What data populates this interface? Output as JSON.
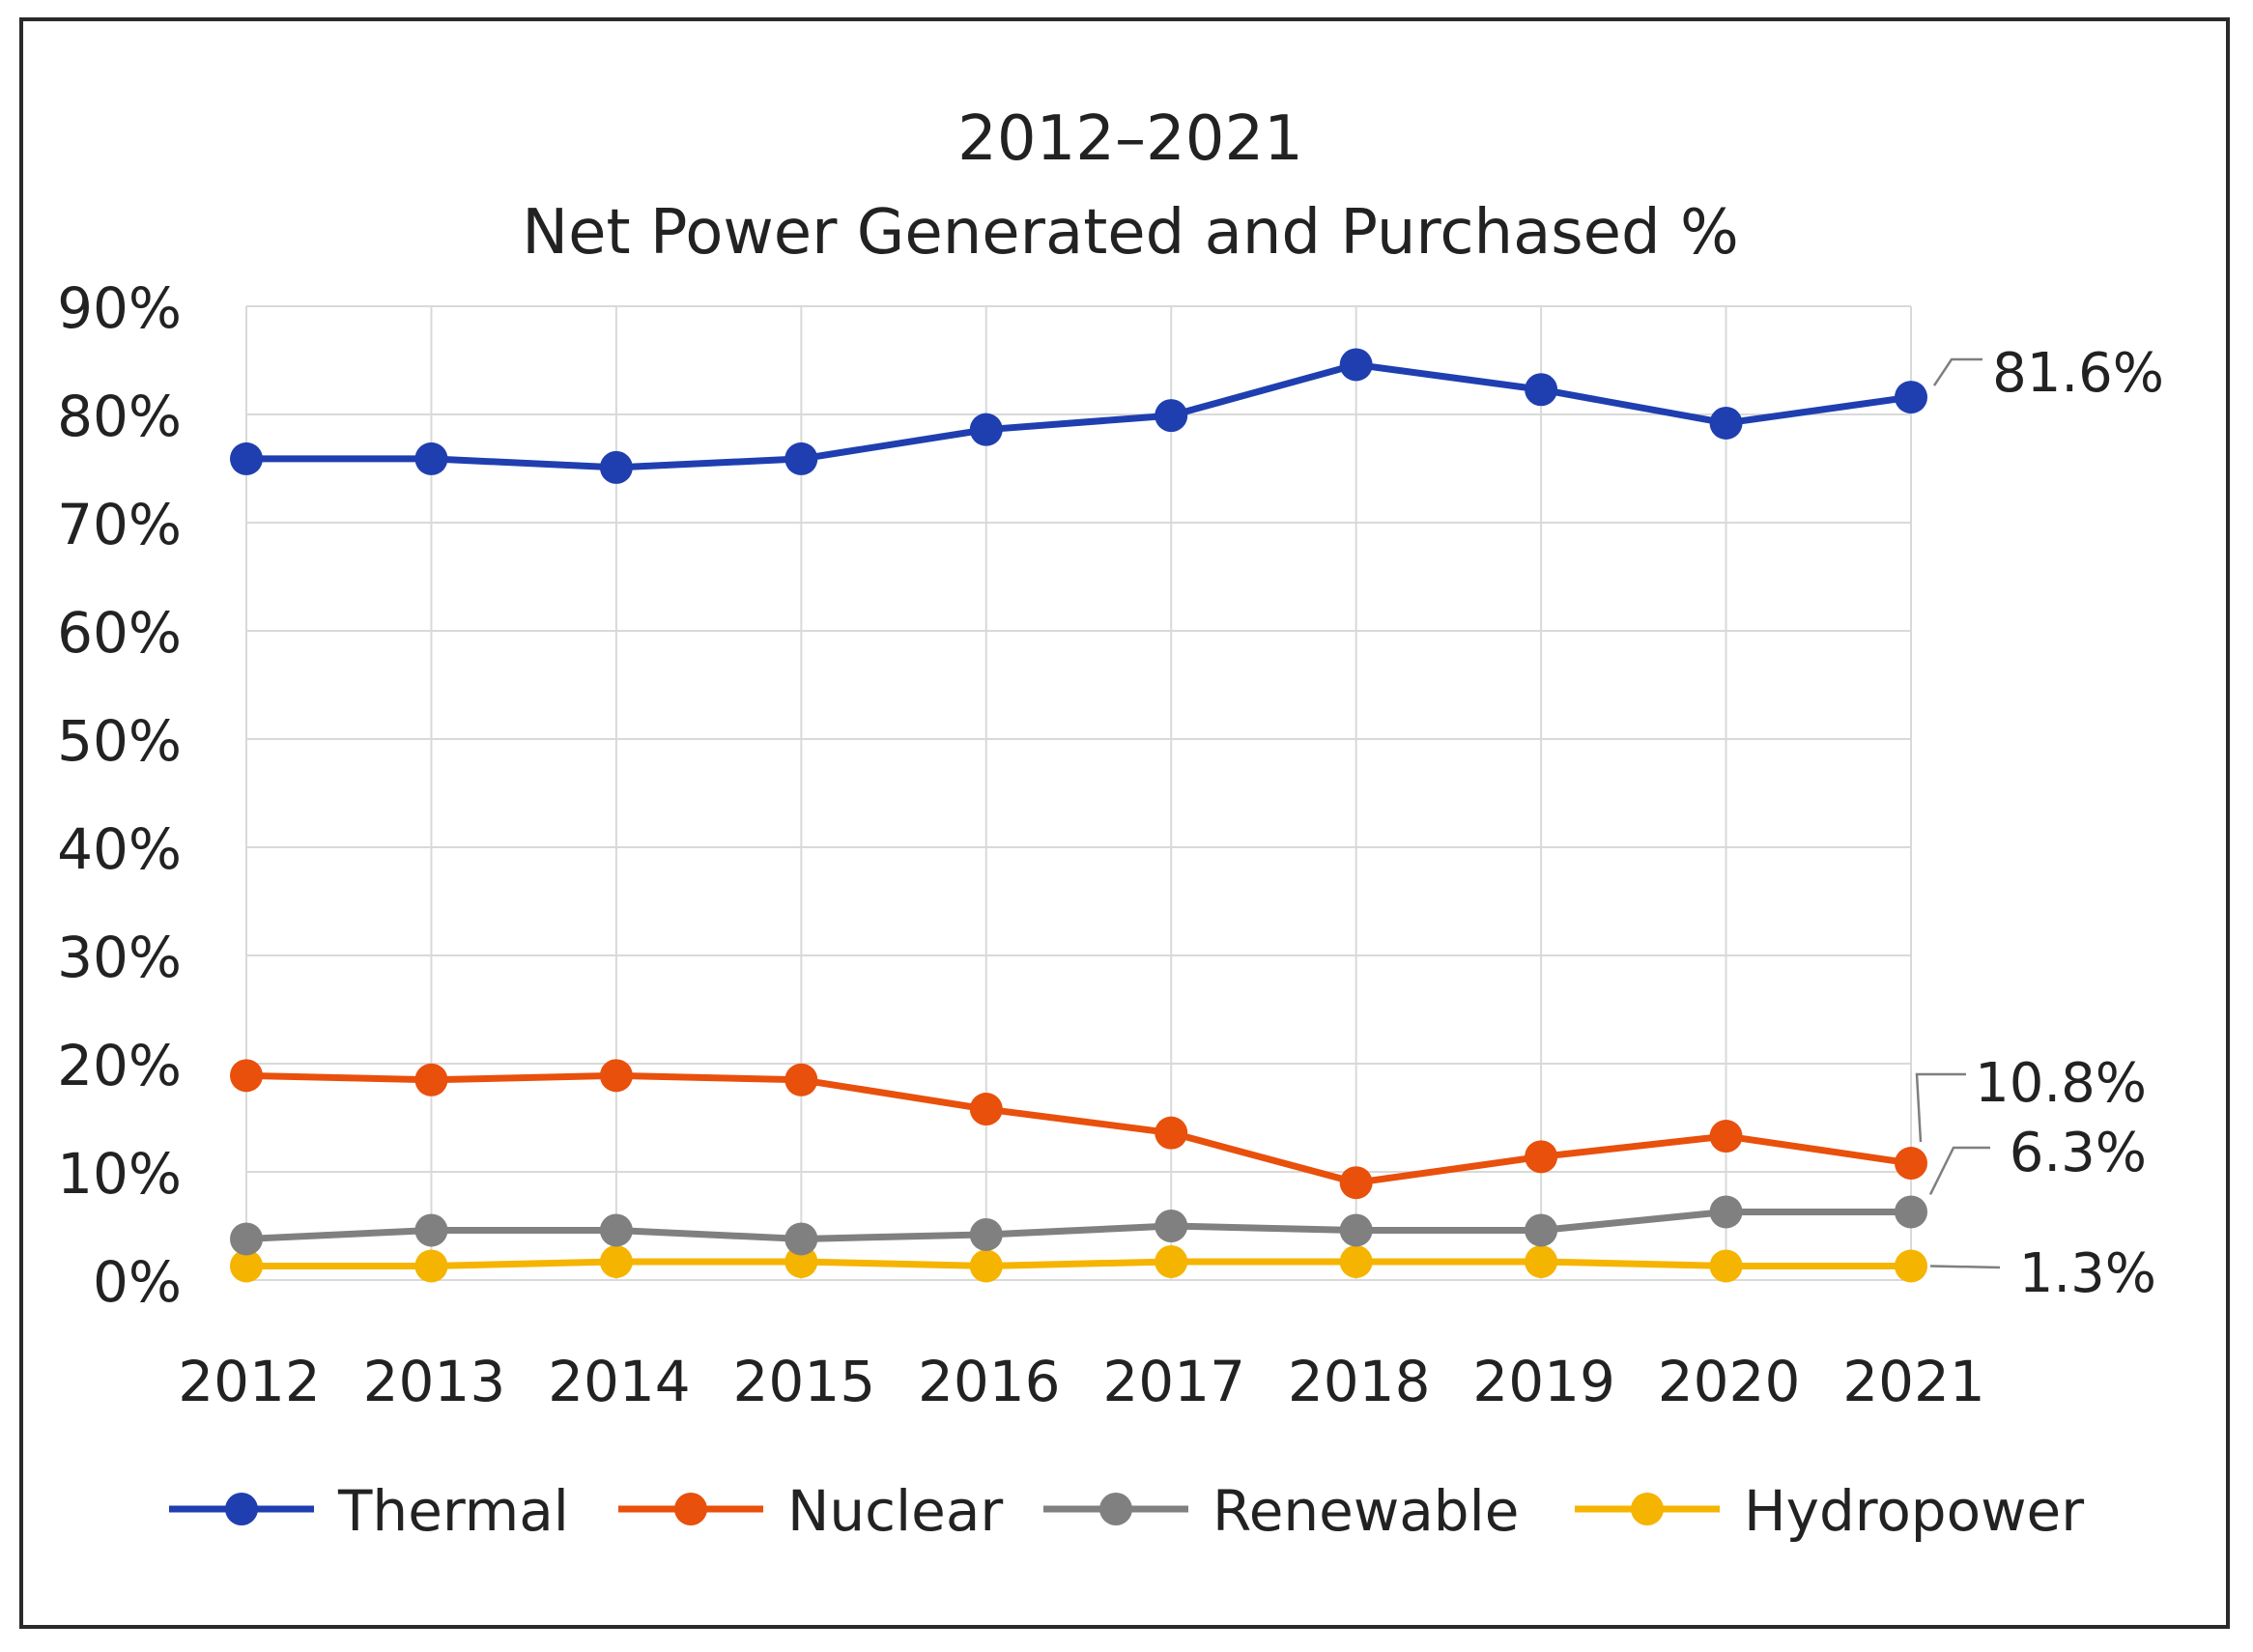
{
  "chart_data": {
    "type": "line",
    "title": "2012–2021",
    "subtitle": "Net Power Generated and Purchased %",
    "xlabel": "",
    "ylabel": "",
    "categories": [
      "2012",
      "2013",
      "2014",
      "2015",
      "2016",
      "2017",
      "2018",
      "2019",
      "2020",
      "2021"
    ],
    "ylim": [
      0,
      90
    ],
    "yticks": [
      "0%",
      "10%",
      "20%",
      "30%",
      "40%",
      "50%",
      "60%",
      "70%",
      "80%",
      "90%"
    ],
    "grid": true,
    "legend_position": "bottom",
    "series": [
      {
        "name": "Thermal",
        "color": "#1f3fb0",
        "values": [
          75.9,
          75.9,
          75.1,
          75.9,
          78.6,
          79.9,
          84.6,
          82.3,
          79.2,
          81.6
        ],
        "end_label": "81.6%"
      },
      {
        "name": "Nuclear",
        "color": "#e8500c",
        "values": [
          18.9,
          18.5,
          18.9,
          18.5,
          15.8,
          13.6,
          9.0,
          11.4,
          13.3,
          10.8
        ],
        "end_label": "10.8%"
      },
      {
        "name": "Renewable",
        "color": "#808080",
        "values": [
          3.8,
          4.6,
          4.6,
          3.8,
          4.2,
          5.0,
          4.6,
          4.6,
          6.3,
          6.3
        ],
        "end_label": "6.3%"
      },
      {
        "name": "Hydropower",
        "color": "#f5b400",
        "values": [
          1.3,
          1.3,
          1.7,
          1.7,
          1.3,
          1.7,
          1.7,
          1.7,
          1.3,
          1.3
        ],
        "end_label": "1.3%"
      }
    ]
  }
}
